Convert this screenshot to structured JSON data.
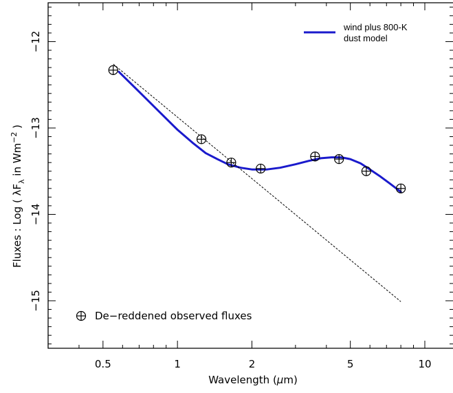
{
  "chart_data": {
    "type": "scatter",
    "xscale": "log",
    "xlim": [
      0.3,
      13.0
    ],
    "ylim": [
      -15.55,
      -11.55
    ],
    "xticks": [
      0.5,
      1,
      2,
      5,
      10
    ],
    "xtick_labels": [
      "0.5",
      "1",
      "2",
      "5",
      "10"
    ],
    "yticks": [
      -12,
      -13,
      -14,
      -15
    ],
    "ytick_labels": [
      "−12",
      "−13",
      "−14",
      "−15"
    ],
    "xlabel_text": "Wavelength (",
    "xlabel_greek": "μ",
    "xlabel_unit": "m)",
    "ylabel_text": "Fluxes : Log ( λF",
    "ylabel_sub": "λ",
    "ylabel_unit": " in Wm",
    "ylabel_sup": "−2",
    "ylabel_close": " )",
    "grid": false,
    "legend_model": [
      "wind plus 800-K",
      "dust model"
    ],
    "legend_points": "De−reddened observed fluxes",
    "model_color": "#1a1acc",
    "series": [
      {
        "kind": "points",
        "x": [
          0.55,
          1.25,
          1.65,
          2.17,
          3.6,
          4.5,
          5.8,
          8.0
        ],
        "y": [
          -12.33,
          -13.13,
          -13.4,
          -13.47,
          -13.33,
          -13.36,
          -13.5,
          -13.7
        ]
      },
      {
        "kind": "model",
        "x": [
          0.58,
          0.7,
          0.85,
          1.0,
          1.15,
          1.3,
          1.45,
          1.6,
          1.8,
          2.0,
          2.3,
          2.6,
          3.0,
          3.4,
          3.8,
          4.2,
          4.6,
          5.0,
          5.5,
          6.0,
          6.6,
          7.2,
          8.0
        ],
        "y": [
          -12.35,
          -12.58,
          -12.82,
          -13.02,
          -13.17,
          -13.29,
          -13.36,
          -13.42,
          -13.46,
          -13.48,
          -13.48,
          -13.46,
          -13.42,
          -13.38,
          -13.35,
          -13.34,
          -13.34,
          -13.36,
          -13.41,
          -13.48,
          -13.56,
          -13.64,
          -13.74
        ]
      },
      {
        "kind": "wind",
        "x": [
          0.55,
          8.0
        ],
        "y": [
          -12.26,
          -15.01
        ]
      }
    ]
  }
}
